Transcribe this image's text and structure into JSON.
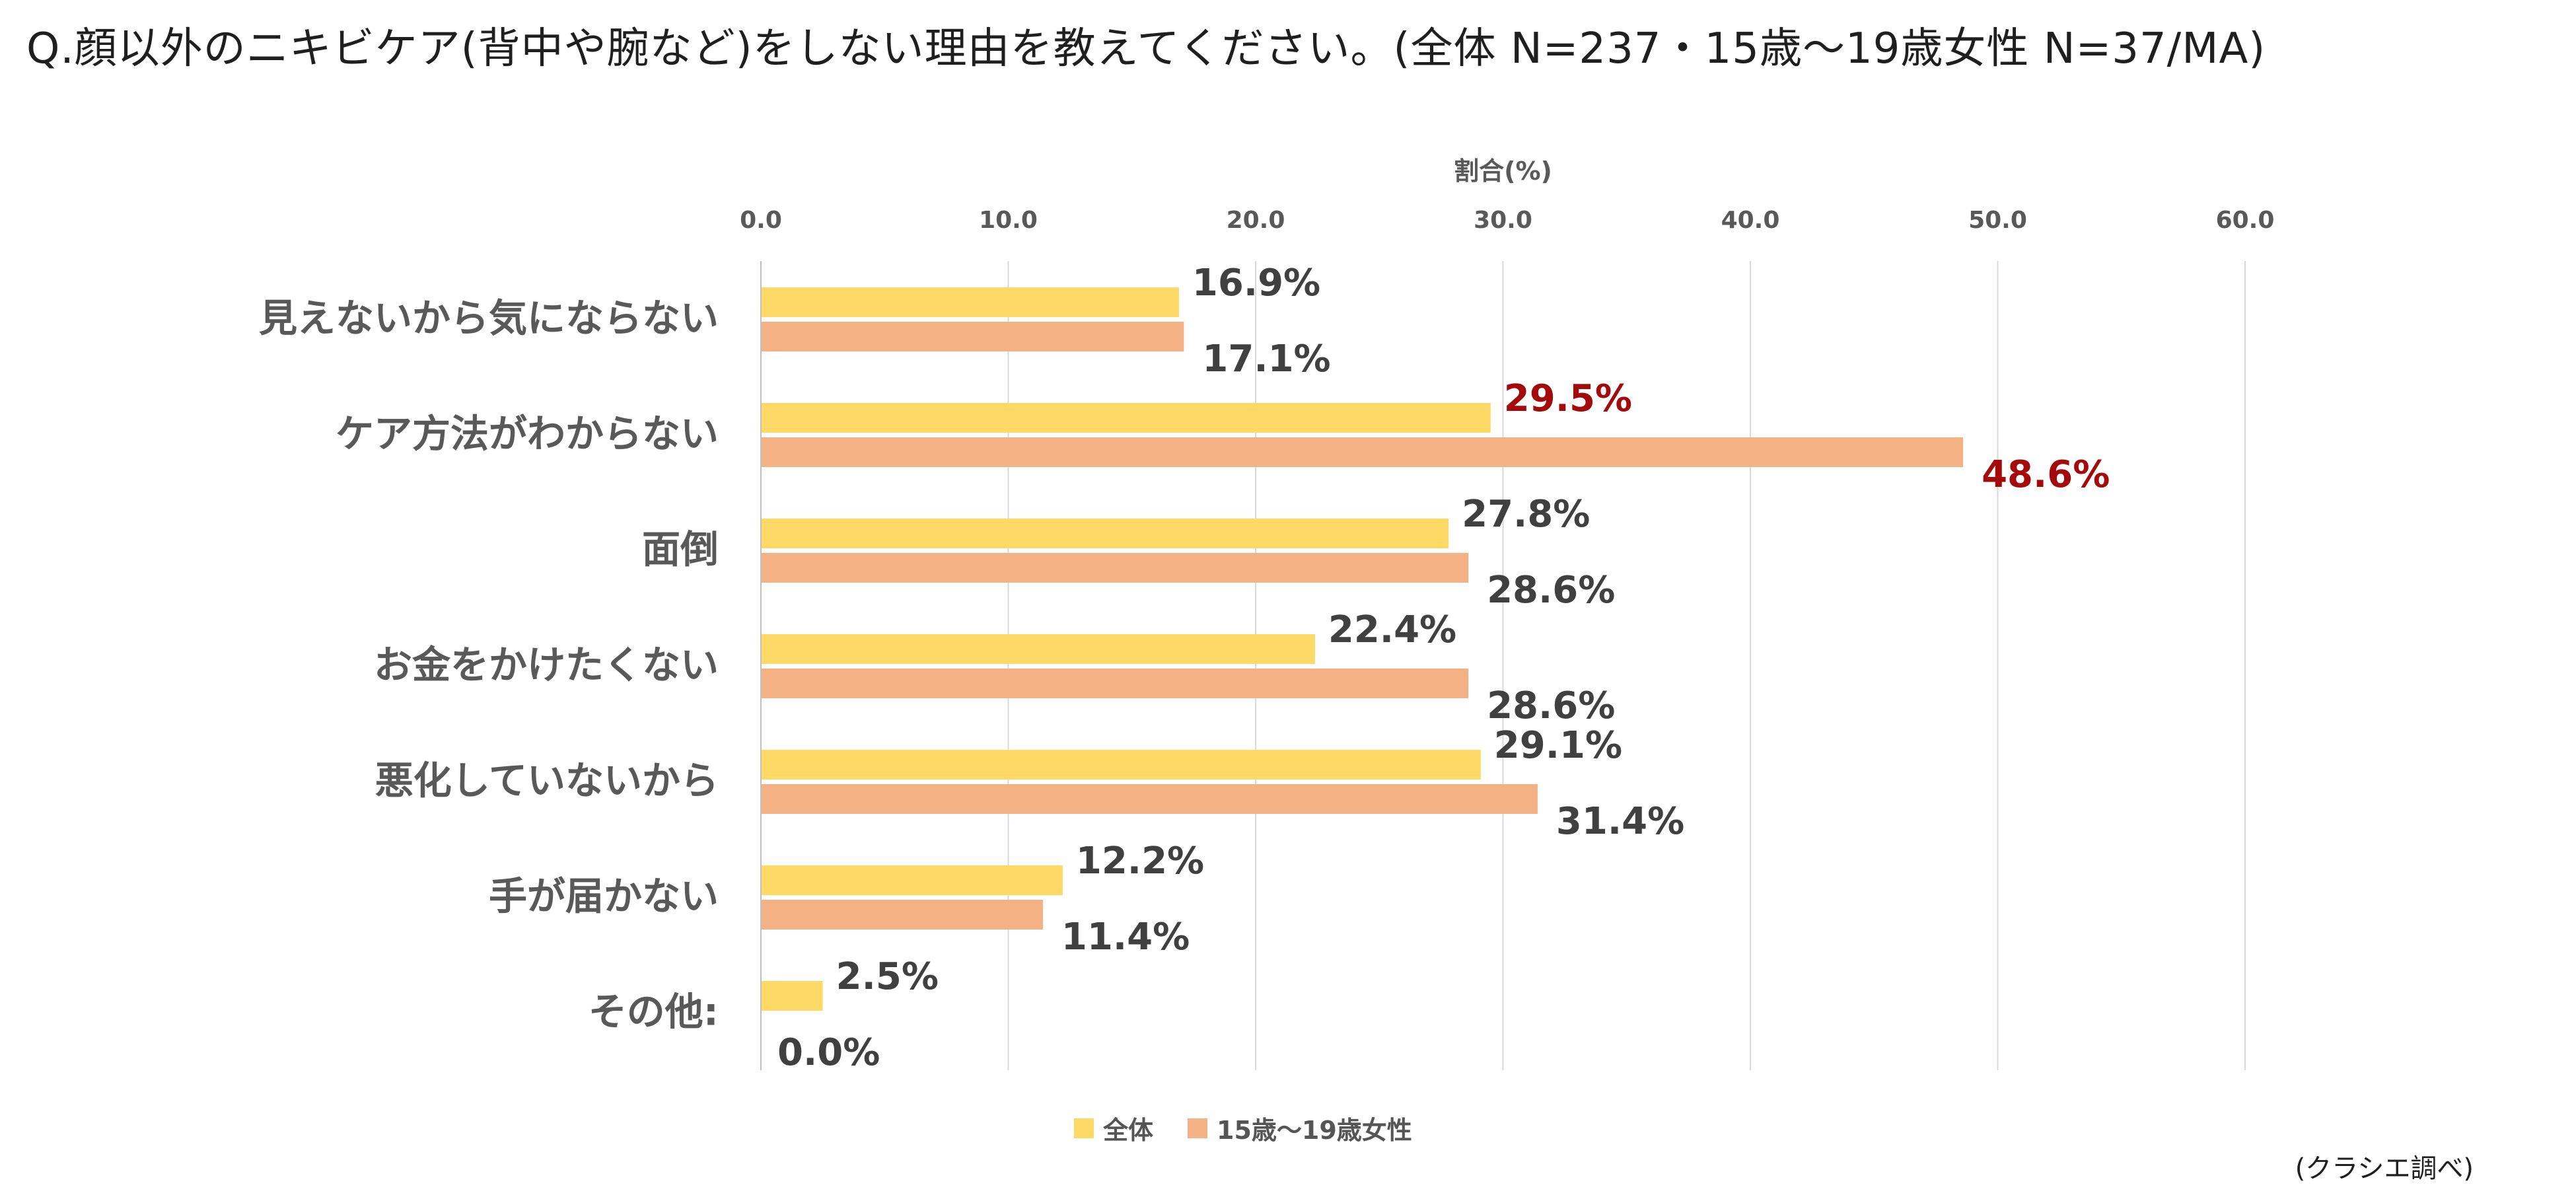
{
  "title": "Q.顔以外のニキビケア(背中や腕など)をしない理由を教えてください。(全体 N=237・15歳〜19歳女性 N=37/MA)",
  "source": "(クラシエ調べ)",
  "colors": {
    "series1": "#FFD966",
    "series2": "#F4B183",
    "highlight": "#A50A0A",
    "label": "#404040",
    "grid": "#D9D9D9"
  },
  "chart_data": {
    "type": "bar",
    "orientation": "horizontal",
    "xlabel": "割合(%)",
    "xlim": [
      0,
      60
    ],
    "xticks": [
      "0.0",
      "10.0",
      "20.0",
      "30.0",
      "40.0",
      "50.0",
      "60.0"
    ],
    "categories": [
      "見えないから気にならない",
      "ケア方法がわからない",
      "面倒",
      "お金をかけたくない",
      "悪化していないから",
      "手が届かない",
      "その他:"
    ],
    "series": [
      {
        "name": "全体",
        "values": [
          16.9,
          29.5,
          27.8,
          22.4,
          29.1,
          12.2,
          2.5
        ],
        "labels": [
          "16.9%",
          "29.5%",
          "27.8%",
          "22.4%",
          "29.1%",
          "12.2%",
          "2.5%"
        ]
      },
      {
        "name": "15歳〜19歳女性",
        "values": [
          17.1,
          48.6,
          28.6,
          28.6,
          31.4,
          11.4,
          0.0
        ],
        "labels": [
          "17.1%",
          "48.6%",
          "28.6%",
          "28.6%",
          "31.4%",
          "11.4%",
          "0.0%"
        ]
      }
    ],
    "highlighted": [
      "ケア方法がわからない"
    ],
    "grid": true,
    "legend": "bottom"
  }
}
